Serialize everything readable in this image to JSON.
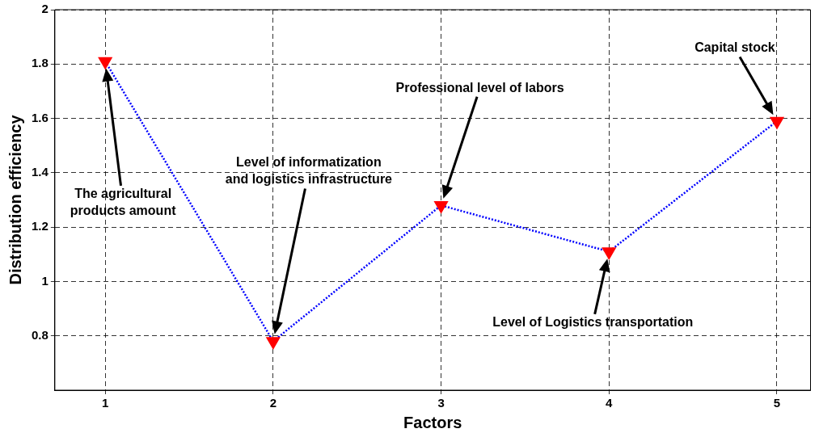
{
  "chart_data": {
    "type": "line",
    "xlabel": "Factors",
    "ylabel": "Distribution efficiency",
    "x": [
      1,
      2,
      3,
      4,
      5
    ],
    "series": [
      {
        "color": "#0000ff",
        "colors": [
          "#ff0000",
          "#ff0000",
          "#ff0000",
          "#ff0000",
          "#ff0000"
        ],
        "values": [
          1.81,
          0.78,
          1.28,
          1.11,
          1.59
        ]
      }
    ],
    "xlim": [
      0.7,
      5.2
    ],
    "xticks": [
      1,
      2,
      3,
      4,
      5
    ],
    "ylim": [
      0.6,
      2
    ],
    "yticks": [
      0.8,
      1,
      1.2,
      1.4,
      1.6,
      1.8,
      2
    ],
    "grid": true,
    "marker": "triangle",
    "line_style": "dotted",
    "annotations": [
      "The agricultural\nproducts amount",
      "Level of informatization\nand logistics infrastructure",
      "Professional level of labors",
      "Level of Logistics transportation",
      "Capital stock"
    ]
  }
}
